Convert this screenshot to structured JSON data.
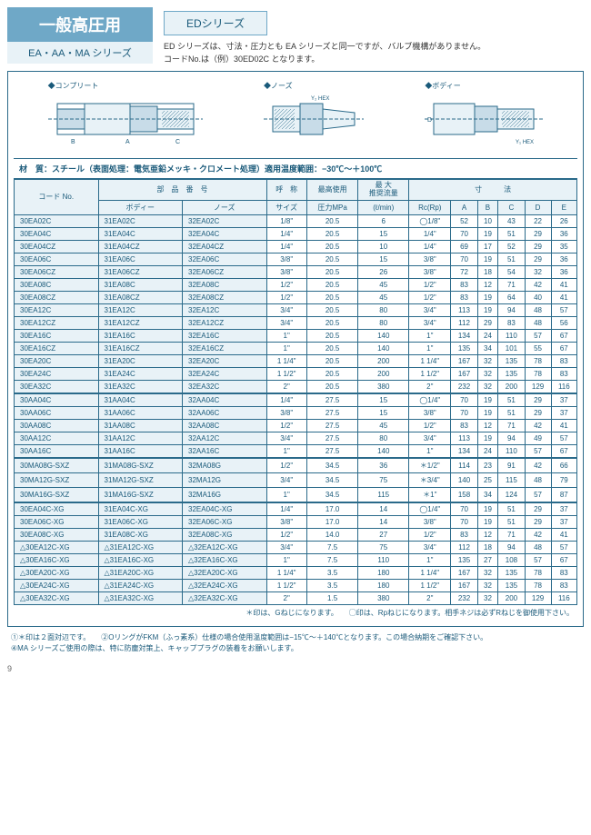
{
  "header": {
    "main_title": "一般高圧用",
    "sub_title": "EA・AA・MA シリーズ",
    "ed_badge": "EDシリーズ",
    "ed_line1": "ED シリーズは、寸法・圧力とも EA シリーズと同一ですが、バルブ機構がありません。",
    "ed_line2": "コードNo.は（例）30ED02C となります。"
  },
  "diagrams": {
    "d1": "◆コンプリート",
    "d2": "◆ノーズ",
    "d3": "◆ボディー"
  },
  "material_line": "材　質：スチール（表面処理：電気亜鉛メッキ・クロメート処理）適用温度範囲：−30℃〜＋100℃",
  "thead": {
    "code": "コード No.",
    "part": "部　品　番　号",
    "body": "ボディー",
    "nose": "ノーズ",
    "size_h": "呼　称",
    "size": "サイズ",
    "press_h": "最高使用",
    "press": "圧力MPa",
    "flow_h": "最 大",
    "flow_m": "推奨流量",
    "flow": "(ℓ/min)",
    "dim": "寸　　　法",
    "rc": "Rc(Rp)",
    "A": "A",
    "B": "B",
    "C": "C",
    "D": "D",
    "E": "E"
  },
  "rows": [
    {
      "c": "30EA02C",
      "b": "31EA02C",
      "n": "32EA02C",
      "s": "1/8\"",
      "p": "20.5",
      "f": "6",
      "rc": "◯1/8\"",
      "A": "52",
      "B": "10",
      "C": "43",
      "D": "22",
      "E": "26"
    },
    {
      "c": "30EA04C",
      "b": "31EA04C",
      "n": "32EA04C",
      "s": "1/4\"",
      "p": "20.5",
      "f": "15",
      "rc": "1/4\"",
      "A": "70",
      "B": "19",
      "C": "51",
      "D": "29",
      "E": "36"
    },
    {
      "c": "30EA04CZ",
      "b": "31EA04CZ",
      "n": "32EA04CZ",
      "s": "1/4\"",
      "p": "20.5",
      "f": "10",
      "rc": "1/4\"",
      "A": "69",
      "B": "17",
      "C": "52",
      "D": "29",
      "E": "35"
    },
    {
      "c": "30EA06C",
      "b": "31EA06C",
      "n": "32EA06C",
      "s": "3/8\"",
      "p": "20.5",
      "f": "15",
      "rc": "3/8\"",
      "A": "70",
      "B": "19",
      "C": "51",
      "D": "29",
      "E": "36"
    },
    {
      "c": "30EA06CZ",
      "b": "31EA06CZ",
      "n": "32EA06CZ",
      "s": "3/8\"",
      "p": "20.5",
      "f": "26",
      "rc": "3/8\"",
      "A": "72",
      "B": "18",
      "C": "54",
      "D": "32",
      "E": "36"
    },
    {
      "c": "30EA08C",
      "b": "31EA08C",
      "n": "32EA08C",
      "s": "1/2\"",
      "p": "20.5",
      "f": "45",
      "rc": "1/2\"",
      "A": "83",
      "B": "12",
      "C": "71",
      "D": "42",
      "E": "41"
    },
    {
      "c": "30EA08CZ",
      "b": "31EA08CZ",
      "n": "32EA08CZ",
      "s": "1/2\"",
      "p": "20.5",
      "f": "45",
      "rc": "1/2\"",
      "A": "83",
      "B": "19",
      "C": "64",
      "D": "40",
      "E": "41"
    },
    {
      "c": "30EA12C",
      "b": "31EA12C",
      "n": "32EA12C",
      "s": "3/4\"",
      "p": "20.5",
      "f": "80",
      "rc": "3/4\"",
      "A": "113",
      "B": "19",
      "C": "94",
      "D": "48",
      "E": "57"
    },
    {
      "c": "30EA12CZ",
      "b": "31EA12CZ",
      "n": "32EA12CZ",
      "s": "3/4\"",
      "p": "20.5",
      "f": "80",
      "rc": "3/4\"",
      "A": "112",
      "B": "29",
      "C": "83",
      "D": "48",
      "E": "56"
    },
    {
      "c": "30EA16C",
      "b": "31EA16C",
      "n": "32EA16C",
      "s": "1\"",
      "p": "20.5",
      "f": "140",
      "rc": "1\"",
      "A": "134",
      "B": "24",
      "C": "110",
      "D": "57",
      "E": "67"
    },
    {
      "c": "30EA16CZ",
      "b": "31EA16CZ",
      "n": "32EA16CZ",
      "s": "1\"",
      "p": "20.5",
      "f": "140",
      "rc": "1\"",
      "A": "135",
      "B": "34",
      "C": "101",
      "D": "55",
      "E": "67"
    },
    {
      "c": "30EA20C",
      "b": "31EA20C",
      "n": "32EA20C",
      "s": "1 1/4\"",
      "p": "20.5",
      "f": "200",
      "rc": "1 1/4\"",
      "A": "167",
      "B": "32",
      "C": "135",
      "D": "78",
      "E": "83"
    },
    {
      "c": "30EA24C",
      "b": "31EA24C",
      "n": "32EA24C",
      "s": "1 1/2\"",
      "p": "20.5",
      "f": "200",
      "rc": "1 1/2\"",
      "A": "167",
      "B": "32",
      "C": "135",
      "D": "78",
      "E": "83"
    },
    {
      "c": "30EA32C",
      "b": "31EA32C",
      "n": "32EA32C",
      "s": "2\"",
      "p": "20.5",
      "f": "380",
      "rc": "2\"",
      "A": "232",
      "B": "32",
      "C": "200",
      "D": "129",
      "E": "116"
    },
    {
      "c": "30AA04C",
      "b": "31AA04C",
      "n": "32AA04C",
      "s": "1/4\"",
      "p": "27.5",
      "f": "15",
      "rc": "◯1/4\"",
      "A": "70",
      "B": "19",
      "C": "51",
      "D": "29",
      "E": "37",
      "sec": true
    },
    {
      "c": "30AA06C",
      "b": "31AA06C",
      "n": "32AA06C",
      "s": "3/8\"",
      "p": "27.5",
      "f": "15",
      "rc": "3/8\"",
      "A": "70",
      "B": "19",
      "C": "51",
      "D": "29",
      "E": "37"
    },
    {
      "c": "30AA08C",
      "b": "31AA08C",
      "n": "32AA08C",
      "s": "1/2\"",
      "p": "27.5",
      "f": "45",
      "rc": "1/2\"",
      "A": "83",
      "B": "12",
      "C": "71",
      "D": "42",
      "E": "41"
    },
    {
      "c": "30AA12C",
      "b": "31AA12C",
      "n": "32AA12C",
      "s": "3/4\"",
      "p": "27.5",
      "f": "80",
      "rc": "3/4\"",
      "A": "113",
      "B": "19",
      "C": "94",
      "D": "49",
      "E": "57"
    },
    {
      "c": "30AA16C",
      "b": "31AA16C",
      "n": "32AA16C",
      "s": "1\"",
      "p": "27.5",
      "f": "140",
      "rc": "1\"",
      "A": "134",
      "B": "24",
      "C": "110",
      "D": "57",
      "E": "67"
    },
    {
      "c": "30MA08G-SXZ",
      "b": "31MA08G-SXZ",
      "n": "32MA08G",
      "s": "1/2\"",
      "p": "34.5",
      "f": "36",
      "rc": "＊1/2\"",
      "A": "114",
      "B": "23",
      "C": "91",
      "D": "42",
      "E": "66",
      "sec": true
    },
    {
      "c": "30MA12G-SXZ",
      "b": "31MA12G-SXZ",
      "n": "32MA12G",
      "s": "3/4\"",
      "p": "34.5",
      "f": "75",
      "rc": "＊3/4\"",
      "A": "140",
      "B": "25",
      "C": "115",
      "D": "48",
      "E": "79"
    },
    {
      "c": "30MA16G-SXZ",
      "b": "31MA16G-SXZ",
      "n": "32MA16G",
      "s": "1\"",
      "p": "34.5",
      "f": "115",
      "rc": "＊1\"",
      "A": "158",
      "B": "34",
      "C": "124",
      "D": "57",
      "E": "87"
    },
    {
      "c": "30EA04C-XG",
      "b": "31EA04C-XG",
      "n": "32EA04C-XG",
      "s": "1/4\"",
      "p": "17.0",
      "f": "14",
      "rc": "◯1/4\"",
      "A": "70",
      "B": "19",
      "C": "51",
      "D": "29",
      "E": "37",
      "sec": true
    },
    {
      "c": "30EA06C-XG",
      "b": "31EA06C-XG",
      "n": "32EA06C-XG",
      "s": "3/8\"",
      "p": "17.0",
      "f": "14",
      "rc": "3/8\"",
      "A": "70",
      "B": "19",
      "C": "51",
      "D": "29",
      "E": "37"
    },
    {
      "c": "30EA08C-XG",
      "b": "31EA08C-XG",
      "n": "32EA08C-XG",
      "s": "1/2\"",
      "p": "14.0",
      "f": "27",
      "rc": "1/2\"",
      "A": "83",
      "B": "12",
      "C": "71",
      "D": "42",
      "E": "41"
    },
    {
      "c": "△30EA12C-XG",
      "b": "△31EA12C-XG",
      "n": "△32EA12C-XG",
      "s": "3/4\"",
      "p": "7.5",
      "f": "75",
      "rc": "3/4\"",
      "A": "112",
      "B": "18",
      "C": "94",
      "D": "48",
      "E": "57"
    },
    {
      "c": "△30EA16C-XG",
      "b": "△31EA16C-XG",
      "n": "△32EA16C-XG",
      "s": "1\"",
      "p": "7.5",
      "f": "110",
      "rc": "1\"",
      "A": "135",
      "B": "27",
      "C": "108",
      "D": "57",
      "E": "67"
    },
    {
      "c": "△30EA20C-XG",
      "b": "△31EA20C-XG",
      "n": "△32EA20C-XG",
      "s": "1 1/4\"",
      "p": "3.5",
      "f": "180",
      "rc": "1 1/4\"",
      "A": "167",
      "B": "32",
      "C": "135",
      "D": "78",
      "E": "83"
    },
    {
      "c": "△30EA24C-XG",
      "b": "△31EA24C-XG",
      "n": "△32EA24C-XG",
      "s": "1 1/2\"",
      "p": "3.5",
      "f": "180",
      "rc": "1 1/2\"",
      "A": "167",
      "B": "32",
      "C": "135",
      "D": "78",
      "E": "83"
    },
    {
      "c": "△30EA32C-XG",
      "b": "△31EA32C-XG",
      "n": "△32EA32C-XG",
      "s": "2\"",
      "p": "1.5",
      "f": "380",
      "rc": "2\"",
      "A": "232",
      "B": "32",
      "C": "200",
      "D": "129",
      "E": "116"
    }
  ],
  "table_footer": "＊印は、Gねじになります。　　◯印は、Rpねじになります。相手ネジは必ずRねじを御使用下さい。",
  "footnotes": {
    "f1": "①＊印は２面対辺です。　　②OリングがFKM（ふっ素系）仕様の場合使用温度範囲は−15℃〜＋140℃となります。この場合納期をご確認下さい。",
    "f2": "④MA シリーズご使用の際は、特に防塵対策上、キャッププラグの装着をお願いします。"
  },
  "page_number": "9",
  "colors": {
    "accent": "#6fa8c7",
    "light": "#e8f2f7",
    "border": "#2a6a8a",
    "text": "#1a5a7a"
  }
}
